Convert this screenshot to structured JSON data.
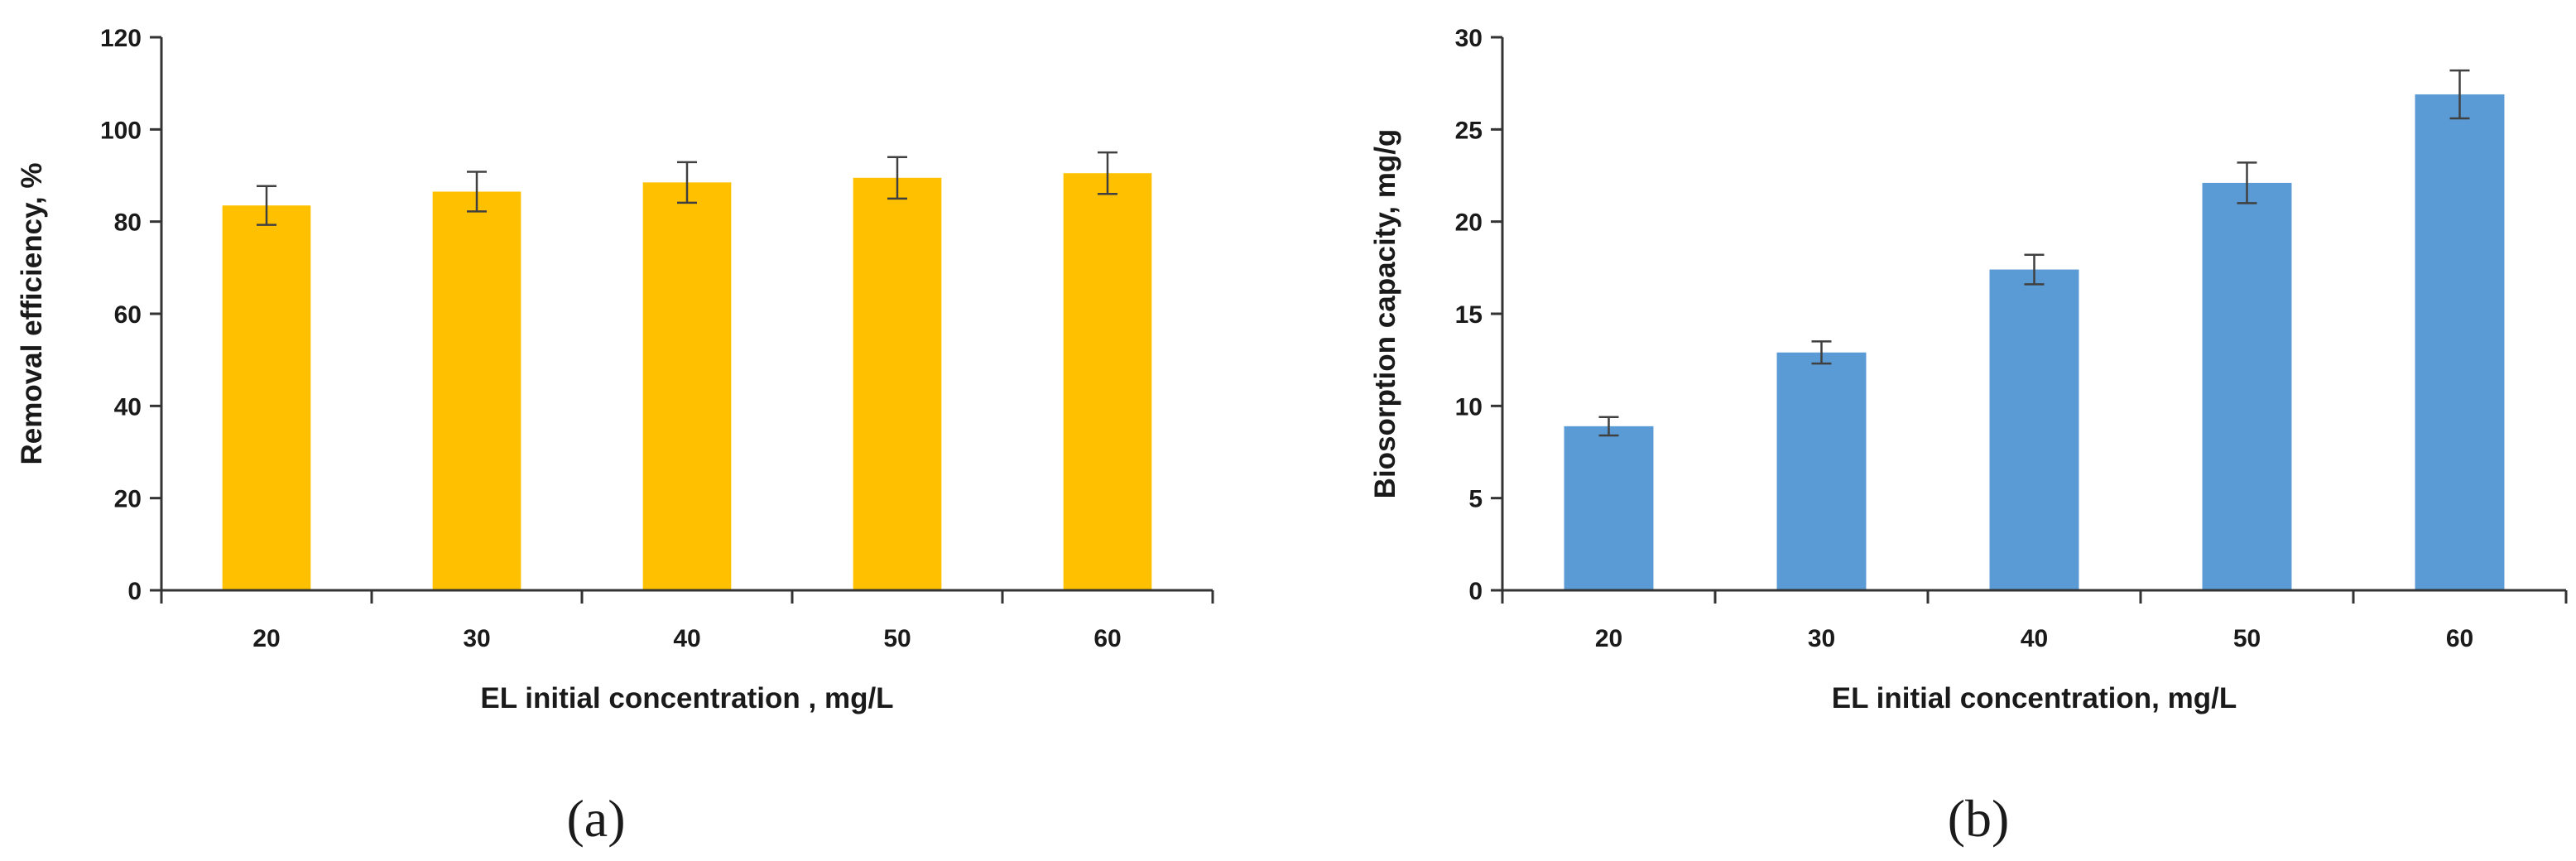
{
  "figure": {
    "panel_labels": [
      "(a)",
      "(b)"
    ]
  },
  "chart_data": [
    {
      "id": "a",
      "type": "bar",
      "title": "",
      "xlabel": "EL initial concentration , mg/L",
      "ylabel": "Removal efficiency, %",
      "categories": [
        "20",
        "30",
        "40",
        "50",
        "60"
      ],
      "values": [
        83.5,
        86.5,
        88.5,
        89.5,
        90.5
      ],
      "error": [
        4.2,
        4.3,
        4.4,
        4.5,
        4.5
      ],
      "ylim": [
        0,
        120
      ],
      "yticks": [
        0,
        20,
        40,
        60,
        80,
        100,
        120
      ],
      "grid": false,
      "legend": "none",
      "color": "#FFC000"
    },
    {
      "id": "b",
      "type": "bar",
      "title": "",
      "xlabel": "EL initial concentration, mg/L",
      "ylabel": "Biosorption capacity, mg/g",
      "categories": [
        "20",
        "30",
        "40",
        "50",
        "60"
      ],
      "values": [
        8.9,
        12.9,
        17.4,
        22.1,
        26.9
      ],
      "error": [
        0.5,
        0.6,
        0.8,
        1.1,
        1.3
      ],
      "ylim": [
        0,
        30
      ],
      "yticks": [
        0,
        5,
        10,
        15,
        20,
        25,
        30
      ],
      "grid": false,
      "legend": "none",
      "color": "#5B9BD5"
    }
  ]
}
